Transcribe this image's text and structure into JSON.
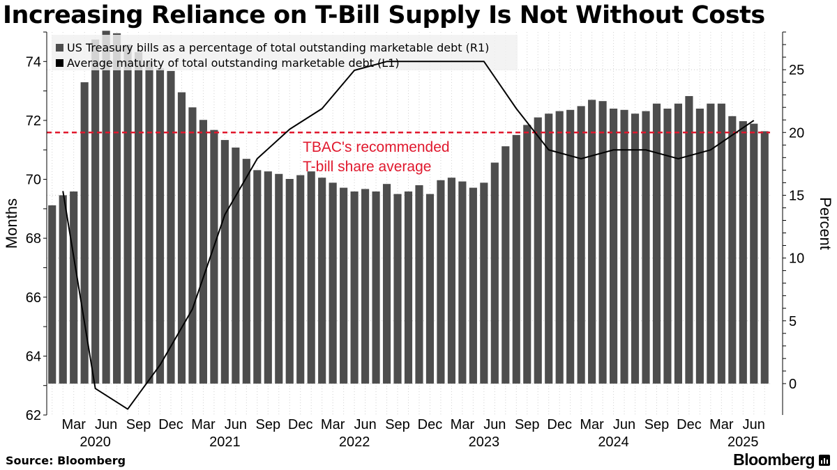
{
  "title": "Increasing Reliance on T-Bill Supply Is Not Without Costs",
  "source": "Source: Bloomberg",
  "brand": "Bloomberg",
  "colors": {
    "bars": "#4d4d4d",
    "line": "#000000",
    "reference": "#e0182d",
    "legend_bg": "#f0f0f0"
  },
  "chart_data": [
    {
      "type": "bar",
      "axis": "right",
      "legend": "US Treasury bills as a percentage of total outstanding marketable debt (R1)",
      "ylabel": "Percent",
      "ylim": [
        -2.5,
        28
      ],
      "yticks": [
        0,
        5,
        10,
        15,
        20,
        25
      ],
      "x_start": "2020-01",
      "values": [
        14.2,
        15.0,
        15.3,
        24.0,
        27.4,
        28.1,
        27.9,
        27.0,
        26.4,
        25.6,
        25.1,
        24.9,
        23.2,
        22.0,
        21.0,
        20.2,
        19.4,
        18.8,
        17.9,
        17.0,
        16.9,
        16.7,
        16.3,
        16.6,
        16.9,
        16.4,
        16.0,
        15.6,
        15.3,
        15.5,
        15.3,
        15.9,
        15.1,
        15.3,
        15.8,
        15.1,
        16.2,
        16.4,
        16.1,
        15.6,
        16.0,
        17.6,
        18.9,
        19.8,
        20.6,
        21.2,
        21.5,
        21.7,
        21.8,
        22.1,
        22.6,
        22.5,
        21.9,
        21.8,
        21.5,
        21.7,
        22.3,
        21.9,
        22.3,
        22.9,
        21.9,
        22.3,
        22.3,
        21.3,
        20.9,
        20.7,
        20.1
      ]
    },
    {
      "type": "line",
      "axis": "left",
      "legend": "Average maturity of total outstanding marketable debt (L1)",
      "ylabel": "Months",
      "ylim": [
        62,
        75
      ],
      "yticks": [
        62,
        64,
        66,
        68,
        70,
        72,
        74
      ],
      "x_start": "2020-02",
      "points": [
        {
          "month": "2020-02",
          "value": 69.6
        },
        {
          "month": "2020-05",
          "value": 62.9
        },
        {
          "month": "2020-08",
          "value": 62.2
        },
        {
          "month": "2020-11",
          "value": 63.7
        },
        {
          "month": "2021-02",
          "value": 65.6
        },
        {
          "month": "2021-05",
          "value": 68.8
        },
        {
          "month": "2021-08",
          "value": 70.7
        },
        {
          "month": "2021-11",
          "value": 71.7
        },
        {
          "month": "2022-02",
          "value": 72.4
        },
        {
          "month": "2022-05",
          "value": 73.7
        },
        {
          "month": "2022-08",
          "value": 74.0
        },
        {
          "month": "2022-11",
          "value": 74.0
        },
        {
          "month": "2023-02",
          "value": 74.0
        },
        {
          "month": "2023-05",
          "value": 74.0
        },
        {
          "month": "2023-08",
          "value": 72.4
        },
        {
          "month": "2023-11",
          "value": 71.0
        },
        {
          "month": "2024-02",
          "value": 70.7
        },
        {
          "month": "2024-05",
          "value": 71.0
        },
        {
          "month": "2024-08",
          "value": 71.0
        },
        {
          "month": "2024-11",
          "value": 70.7
        },
        {
          "month": "2025-02",
          "value": 71.0
        },
        {
          "month": "2025-06",
          "value": 72.0
        }
      ]
    }
  ],
  "reference_line": {
    "axis": "right",
    "value": 20.0,
    "label": [
      "TBAC's recommended",
      "T-bill share average"
    ]
  },
  "xaxis": {
    "month_labels": [
      "Mar",
      "Jun",
      "Sep",
      "Dec",
      "Mar",
      "Jun",
      "Sep",
      "Dec",
      "Mar",
      "Jun",
      "Sep",
      "Dec",
      "Mar",
      "Jun",
      "Sep",
      "Dec",
      "Mar",
      "Jun",
      "Sep",
      "Dec",
      "Mar",
      "Jun"
    ],
    "years": [
      "2020",
      "2021",
      "2022",
      "2023",
      "2024",
      "2025"
    ]
  }
}
